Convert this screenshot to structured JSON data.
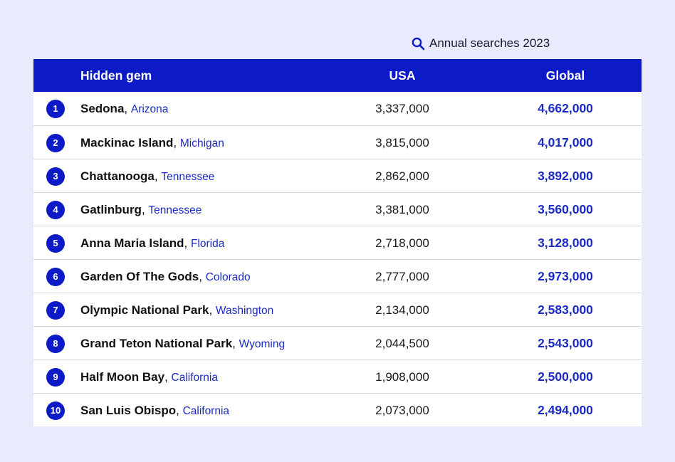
{
  "caption": {
    "icon": "search-icon",
    "text": "Annual searches 2023"
  },
  "colors": {
    "accent": "#0d1bc6",
    "background": "#e9eafc",
    "state_text": "#1b2bc2"
  },
  "chart_data": {
    "type": "table",
    "title": "Annual searches 2023",
    "columns": [
      "Hidden gem",
      "USA",
      "Global"
    ],
    "rows": [
      {
        "rank": "1",
        "name": "Sedona",
        "state": "Arizona",
        "usa": "3,337,000",
        "global": "4,662,000"
      },
      {
        "rank": "2",
        "name": "Mackinac Island",
        "state": "Michigan",
        "usa": "3,815,000",
        "global": "4,017,000"
      },
      {
        "rank": "3",
        "name": "Chattanooga",
        "state": "Tennessee",
        "usa": "2,862,000",
        "global": "3,892,000"
      },
      {
        "rank": "4",
        "name": "Gatlinburg",
        "state": "Tennessee",
        "usa": "3,381,000",
        "global": "3,560,000"
      },
      {
        "rank": "5",
        "name": "Anna Maria Island",
        "state": "Florida",
        "usa": "2,718,000",
        "global": "3,128,000"
      },
      {
        "rank": "6",
        "name": "Garden Of The Gods",
        "state": "Colorado",
        "usa": "2,777,000",
        "global": "2,973,000"
      },
      {
        "rank": "7",
        "name": "Olympic National Park",
        "state": "Washington",
        "usa": "2,134,000",
        "global": "2,583,000"
      },
      {
        "rank": "8",
        "name": "Grand Teton National Park",
        "state": "Wyoming",
        "usa": "2,044,500",
        "global": "2,543,000"
      },
      {
        "rank": "9",
        "name": "Half Moon Bay",
        "state": "California",
        "usa": "1,908,000",
        "global": "2,500,000"
      },
      {
        "rank": "10",
        "name": "San Luis Obispo",
        "state": "California",
        "usa": "2,073,000",
        "global": "2,494,000"
      }
    ]
  }
}
